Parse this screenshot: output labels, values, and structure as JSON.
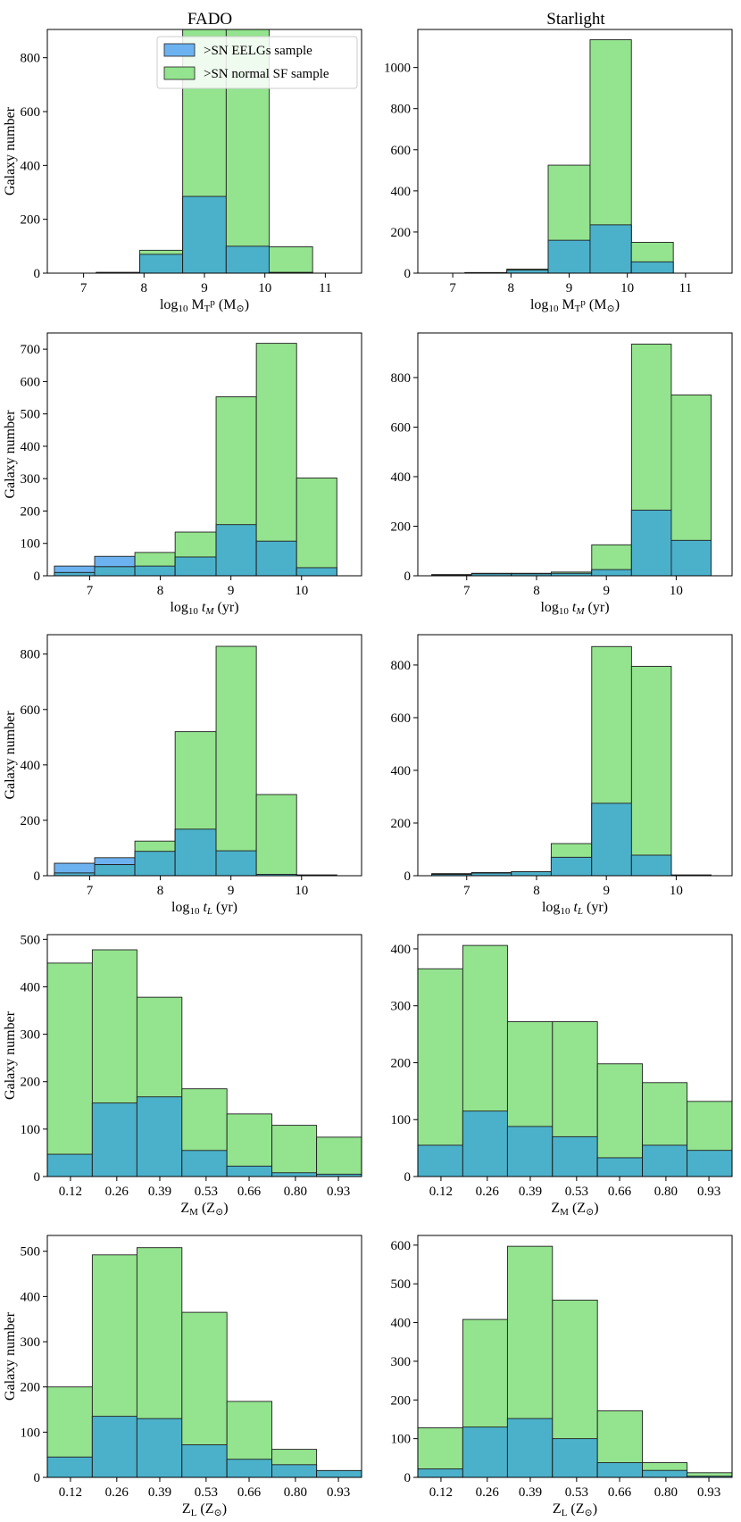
{
  "figure": {
    "column_titles": [
      "FADO",
      "Starlight"
    ],
    "ylabel": "Galaxy number",
    "legend": {
      "eelg_label": ">SN EELGs sample",
      "sf_label": ">SN normal SF sample"
    },
    "colors": {
      "eelg": "#6db2f0",
      "sf": "#94e38f",
      "overlap": "#4bb1cb",
      "edge": "#1f1f1f"
    }
  },
  "chart_data": [
    {
      "type": "bar",
      "row": 0,
      "col": 0,
      "title": "FADO",
      "xlabel": "log10 M_T^p (M_sun)",
      "ylabel": "Galaxy number",
      "xlim": [
        6.4,
        11.6
      ],
      "ylim": [
        0,
        905
      ],
      "xticks": [
        7,
        8,
        9,
        10,
        11
      ],
      "xticklabels": [
        "7",
        "8",
        "9",
        "10",
        "11"
      ],
      "yticks": [
        0,
        200,
        400,
        600,
        800
      ],
      "edges": [
        6.5,
        7.21,
        7.93,
        8.64,
        9.36,
        10.07,
        10.79,
        11.5
      ],
      "series": [
        {
          "name": ">SN EELGs sample",
          "values": [
            0,
            2,
            70,
            285,
            100,
            3,
            0
          ]
        },
        {
          "name": ">SN normal SF sample",
          "values": [
            0,
            3,
            85,
            1000,
            1000,
            98,
            0
          ]
        }
      ]
    },
    {
      "type": "bar",
      "row": 0,
      "col": 1,
      "title": "Starlight",
      "xlabel": "log10 M_T^p (M_sun)",
      "ylabel": "",
      "xlim": [
        6.4,
        11.8
      ],
      "ylim": [
        0,
        1185
      ],
      "xticks": [
        7,
        8,
        9,
        10,
        11
      ],
      "xticklabels": [
        "7",
        "8",
        "9",
        "10",
        "11"
      ],
      "yticks": [
        0,
        200,
        400,
        600,
        800,
        1000
      ],
      "edges": [
        6.5,
        7.21,
        7.93,
        8.64,
        9.36,
        10.07,
        10.79,
        11.5
      ],
      "series": [
        {
          "name": ">SN EELGs sample",
          "values": [
            0,
            2,
            15,
            160,
            235,
            55,
            0
          ]
        },
        {
          "name": ">SN normal SF sample",
          "values": [
            0,
            3,
            20,
            525,
            1135,
            150,
            0
          ]
        }
      ]
    },
    {
      "type": "bar",
      "row": 1,
      "col": 0,
      "xlabel": "log10 t_M (yr)",
      "ylabel": "Galaxy number",
      "xlim": [
        6.4,
        10.85
      ],
      "ylim": [
        0,
        750
      ],
      "xticks": [
        7,
        8,
        9,
        10
      ],
      "xticklabels": [
        "7",
        "8",
        "9",
        "10"
      ],
      "yticks": [
        0,
        100,
        200,
        300,
        400,
        500,
        600,
        700
      ],
      "edges": [
        6.5,
        7.07,
        7.64,
        8.21,
        8.79,
        9.36,
        9.93,
        10.5
      ],
      "series": [
        {
          "name": ">SN EELGs sample",
          "values": [
            30,
            60,
            30,
            58,
            158,
            107,
            25
          ]
        },
        {
          "name": ">SN normal SF sample",
          "values": [
            10,
            28,
            72,
            135,
            553,
            718,
            302
          ]
        }
      ]
    },
    {
      "type": "bar",
      "row": 1,
      "col": 1,
      "xlabel": "log10 t_M (yr)",
      "ylabel": "",
      "xlim": [
        6.3,
        10.8
      ],
      "ylim": [
        0,
        980
      ],
      "xticks": [
        7,
        8,
        9,
        10
      ],
      "xticklabels": [
        "7",
        "8",
        "9",
        "10"
      ],
      "yticks": [
        0,
        200,
        400,
        600,
        800
      ],
      "edges": [
        6.5,
        7.07,
        7.64,
        8.21,
        8.79,
        9.36,
        9.93,
        10.5
      ],
      "series": [
        {
          "name": ">SN EELGs sample",
          "values": [
            3,
            10,
            8,
            10,
            25,
            265,
            143
          ]
        },
        {
          "name": ">SN normal SF sample",
          "values": [
            5,
            8,
            10,
            15,
            125,
            935,
            730
          ]
        }
      ]
    },
    {
      "type": "bar",
      "row": 2,
      "col": 0,
      "xlabel": "log10 t_L (yr)",
      "ylabel": "Galaxy number",
      "xlim": [
        6.4,
        10.85
      ],
      "ylim": [
        0,
        870
      ],
      "xticks": [
        7,
        8,
        9,
        10
      ],
      "xticklabels": [
        "7",
        "8",
        "9",
        "10"
      ],
      "yticks": [
        0,
        200,
        400,
        600,
        800
      ],
      "edges": [
        6.5,
        7.07,
        7.64,
        8.21,
        8.79,
        9.36,
        9.93,
        10.5
      ],
      "series": [
        {
          "name": ">SN EELGs sample",
          "values": [
            45,
            65,
            88,
            168,
            90,
            5,
            0
          ]
        },
        {
          "name": ">SN normal SF sample",
          "values": [
            10,
            40,
            125,
            520,
            828,
            293,
            3
          ]
        }
      ]
    },
    {
      "type": "bar",
      "row": 2,
      "col": 1,
      "xlabel": "log10 t_L (yr)",
      "ylabel": "",
      "xlim": [
        6.3,
        10.8
      ],
      "ylim": [
        0,
        915
      ],
      "xticks": [
        7,
        8,
        9,
        10
      ],
      "xticklabels": [
        "7",
        "8",
        "9",
        "10"
      ],
      "yticks": [
        0,
        200,
        400,
        600,
        800
      ],
      "edges": [
        6.5,
        7.07,
        7.64,
        8.21,
        8.79,
        9.36,
        9.93,
        10.5
      ],
      "series": [
        {
          "name": ">SN EELGs sample",
          "values": [
            8,
            10,
            15,
            70,
            275,
            78,
            3
          ]
        },
        {
          "name": ">SN normal SF sample",
          "values": [
            5,
            12,
            15,
            122,
            870,
            795,
            2
          ]
        }
      ]
    },
    {
      "type": "bar",
      "row": 3,
      "col": 0,
      "xlabel": "Z_M (Z_sun)",
      "ylabel": "Galaxy number",
      "xlim": [
        0.05,
        1.0
      ],
      "ylim": [
        0,
        510
      ],
      "xticks": [
        0.12,
        0.26,
        0.39,
        0.53,
        0.66,
        0.8,
        0.93
      ],
      "xticklabels": [
        "0.12",
        "0.26",
        "0.39",
        "0.53",
        "0.66",
        "0.80",
        "0.93"
      ],
      "yticks": [
        0,
        100,
        200,
        300,
        400,
        500
      ],
      "edges": [
        0.05,
        0.186,
        0.321,
        0.457,
        0.593,
        0.729,
        0.864,
        1.0
      ],
      "series": [
        {
          "name": ">SN EELGs sample",
          "values": [
            47,
            155,
            168,
            55,
            22,
            8,
            5
          ]
        },
        {
          "name": ">SN normal SF sample",
          "values": [
            450,
            478,
            378,
            185,
            132,
            108,
            83
          ]
        }
      ]
    },
    {
      "type": "bar",
      "row": 3,
      "col": 1,
      "xlabel": "Z_M (Z_sun)",
      "ylabel": "",
      "xlim": [
        0.05,
        1.0
      ],
      "ylim": [
        0,
        425
      ],
      "xticks": [
        0.12,
        0.26,
        0.39,
        0.53,
        0.66,
        0.8,
        0.93
      ],
      "xticklabels": [
        "0.12",
        "0.26",
        "0.39",
        "0.53",
        "0.66",
        "0.80",
        "0.93"
      ],
      "yticks": [
        0,
        100,
        200,
        300,
        400
      ],
      "edges": [
        0.05,
        0.186,
        0.321,
        0.457,
        0.593,
        0.729,
        0.864,
        1.0
      ],
      "series": [
        {
          "name": ">SN EELGs sample",
          "values": [
            55,
            115,
            88,
            70,
            33,
            55,
            46
          ]
        },
        {
          "name": ">SN normal SF sample",
          "values": [
            365,
            406,
            272,
            272,
            198,
            165,
            132
          ]
        }
      ]
    },
    {
      "type": "bar",
      "row": 4,
      "col": 0,
      "xlabel": "Z_L (Z_sun)",
      "ylabel": "Galaxy number",
      "xlim": [
        0.05,
        1.0
      ],
      "ylim": [
        0,
        535
      ],
      "xticks": [
        0.12,
        0.26,
        0.39,
        0.53,
        0.66,
        0.8,
        0.93
      ],
      "xticklabels": [
        "0.12",
        "0.26",
        "0.39",
        "0.53",
        "0.66",
        "0.80",
        "0.93"
      ],
      "yticks": [
        0,
        100,
        200,
        300,
        400,
        500
      ],
      "edges": [
        0.05,
        0.186,
        0.321,
        0.457,
        0.593,
        0.729,
        0.864,
        1.0
      ],
      "series": [
        {
          "name": ">SN EELGs sample",
          "values": [
            45,
            135,
            130,
            72,
            40,
            28,
            15
          ]
        },
        {
          "name": ">SN normal SF sample",
          "values": [
            200,
            492,
            508,
            365,
            168,
            62,
            15
          ]
        }
      ]
    },
    {
      "type": "bar",
      "row": 4,
      "col": 1,
      "xlabel": "Z_L (Z_sun)",
      "ylabel": "",
      "xlim": [
        0.05,
        1.0
      ],
      "ylim": [
        0,
        625
      ],
      "xticks": [
        0.12,
        0.26,
        0.39,
        0.53,
        0.66,
        0.8,
        0.93
      ],
      "xticklabels": [
        "0.12",
        "0.26",
        "0.39",
        "0.53",
        "0.66",
        "0.80",
        "0.93"
      ],
      "yticks": [
        0,
        100,
        200,
        300,
        400,
        500,
        600
      ],
      "edges": [
        0.05,
        0.186,
        0.321,
        0.457,
        0.593,
        0.729,
        0.864,
        1.0
      ],
      "series": [
        {
          "name": ">SN EELGs sample",
          "values": [
            22,
            130,
            152,
            100,
            38,
            18,
            3
          ]
        },
        {
          "name": ">SN normal SF sample",
          "values": [
            128,
            408,
            597,
            458,
            172,
            38,
            12
          ]
        }
      ]
    }
  ]
}
